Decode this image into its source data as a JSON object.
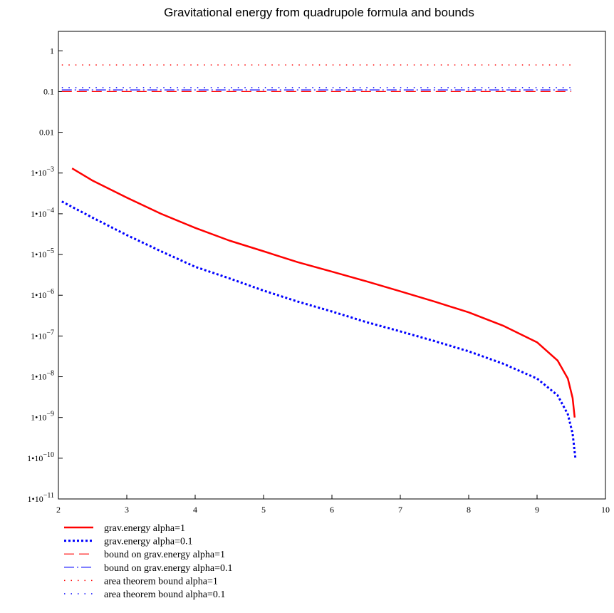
{
  "chart_data": {
    "type": "line",
    "title": "Gravitational energy from quadrupole formula and bounds",
    "xlabel": "",
    "ylabel": "",
    "xlim": [
      2,
      10
    ],
    "ylim": [
      1e-11,
      3
    ],
    "yscale": "log",
    "x_ticks": [
      2,
      3,
      4,
      5,
      6,
      7,
      8,
      9,
      10
    ],
    "y_ticks": [
      {
        "value": 1,
        "label": "1"
      },
      {
        "value": 0.1,
        "label": "0.1"
      },
      {
        "value": 0.01,
        "label": "0.01"
      },
      {
        "value": 0.001,
        "mantissa": "1•10",
        "exp": "−3"
      },
      {
        "value": 0.0001,
        "mantissa": "1•10",
        "exp": "−4"
      },
      {
        "value": 1e-05,
        "mantissa": "1•10",
        "exp": "−5"
      },
      {
        "value": 1e-06,
        "mantissa": "1•10",
        "exp": "−6"
      },
      {
        "value": 1e-07,
        "mantissa": "1•10",
        "exp": "−7"
      },
      {
        "value": 1e-08,
        "mantissa": "1•10",
        "exp": "−8"
      },
      {
        "value": 1e-09,
        "mantissa": "1•10",
        "exp": "−9"
      },
      {
        "value": 1e-10,
        "mantissa": "1•10",
        "exp": "−10"
      },
      {
        "value": 1e-11,
        "mantissa": "1•10",
        "exp": "−11"
      }
    ],
    "grid": false,
    "legend_position": "bottom-left",
    "series": [
      {
        "name": "grav.energy alpha=1",
        "color": "#ff0000",
        "style": "solid",
        "x": [
          2.2,
          2.5,
          3.0,
          3.5,
          4.0,
          4.5,
          5.0,
          5.5,
          6.0,
          6.5,
          7.0,
          7.5,
          8.0,
          8.5,
          9.0,
          9.3,
          9.45,
          9.52,
          9.55
        ],
        "y": [
          0.0013,
          0.00065,
          0.00025,
          0.0001,
          4.5e-05,
          2.2e-05,
          1.2e-05,
          6.5e-06,
          3.8e-06,
          2.2e-06,
          1.25e-06,
          7e-07,
          3.8e-07,
          1.8e-07,
          7e-08,
          2.5e-08,
          9e-09,
          3e-09,
          1e-09
        ]
      },
      {
        "name": "grav.energy alpha=0.1",
        "color": "#0000ff",
        "style": "dotted",
        "x": [
          2.05,
          2.5,
          3.0,
          3.5,
          4.0,
          4.5,
          5.0,
          5.5,
          6.0,
          6.5,
          7.0,
          7.5,
          8.0,
          8.5,
          9.0,
          9.3,
          9.45,
          9.52,
          9.56
        ],
        "y": [
          0.0002,
          8e-05,
          3e-05,
          1.2e-05,
          5e-06,
          2.6e-06,
          1.3e-06,
          7e-07,
          4e-07,
          2.2e-07,
          1.3e-07,
          7.5e-08,
          4.2e-08,
          2.1e-08,
          9e-09,
          3.5e-09,
          1.2e-09,
          4e-10,
          1e-10
        ]
      },
      {
        "name": "bound on grav.energy alpha=1",
        "color": "#ff0000",
        "style": "dash",
        "x": [
          2.05,
          9.5
        ],
        "y": [
          0.1,
          0.1
        ]
      },
      {
        "name": "bound on grav.energy alpha=0.1",
        "color": "#0000ff",
        "style": "dashdot",
        "x": [
          2.05,
          9.5
        ],
        "y": [
          0.11,
          0.11
        ]
      },
      {
        "name": "area theorem bound alpha=1",
        "color": "#ff0000",
        "style": "sparse-dot",
        "x": [
          2.05,
          9.5
        ],
        "y": [
          0.45,
          0.45
        ]
      },
      {
        "name": "area theorem bound alpha=0.1",
        "color": "#0000ff",
        "style": "sparse-dot",
        "x": [
          2.05,
          9.5
        ],
        "y": [
          0.125,
          0.125
        ]
      }
    ]
  }
}
